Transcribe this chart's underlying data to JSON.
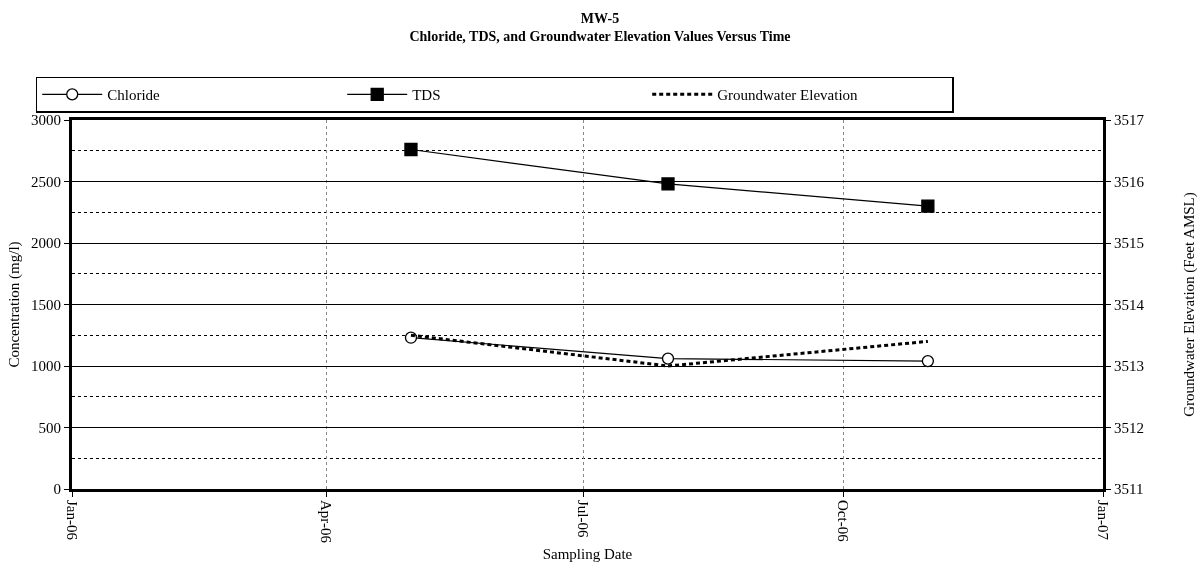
{
  "chart_data": {
    "type": "line",
    "title": "MW-5",
    "subtitle": "Chloride, TDS, and Groundwater Elevation Values Versus Time",
    "xlabel": "Sampling Date",
    "ylabel": "Concentration (mg/l)",
    "y2label": "Groundwater Elevation (Feet AMSL)",
    "x": [
      "2006-05-01",
      "2006-07-31",
      "2006-10-31"
    ],
    "series": [
      {
        "name": "Chloride",
        "color": "#000000",
        "values": [
          1230,
          1060,
          1040
        ],
        "marker": "circle",
        "line_style": "solid"
      },
      {
        "name": "TDS",
        "color": "#000000",
        "values": [
          2760,
          2480,
          2300
        ],
        "marker": "square",
        "line_style": "solid"
      },
      {
        "name": "Groundwater Elevation",
        "color": "#000000",
        "values": [
          3513.5,
          3513.0,
          3513.4
        ],
        "marker": "none",
        "line_style": "dashed",
        "axis": "y2"
      }
    ],
    "xlim": [
      "2006-01-01",
      "2007-01-01"
    ],
    "xticks": [
      {
        "value": "2006-01-01",
        "label": "Jan-06"
      },
      {
        "value": "2006-04-01",
        "label": "Apr-06"
      },
      {
        "value": "2006-07-01",
        "label": "Jul-06"
      },
      {
        "value": "2006-10-01",
        "label": "Oct-06"
      },
      {
        "value": "2007-01-01",
        "label": "Jan-07"
      }
    ],
    "ylim": [
      0,
      3000
    ],
    "yticks": [
      0,
      500,
      1000,
      1500,
      2000,
      2500,
      3000
    ],
    "y2lim": [
      3511,
      3517
    ],
    "y2ticks": [
      3511,
      3512,
      3513,
      3514,
      3515,
      3516,
      3517
    ],
    "grid": true,
    "legend": "top"
  }
}
